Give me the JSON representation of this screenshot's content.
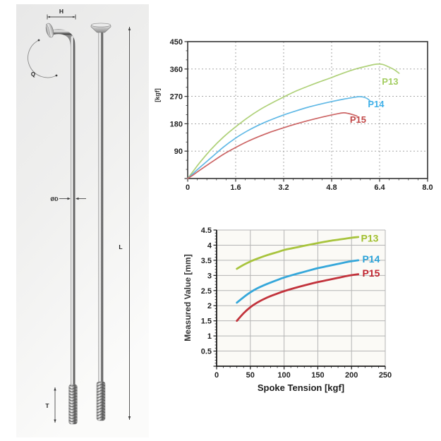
{
  "diagram": {
    "labels": {
      "head_width": "H",
      "bend_angle": "Q",
      "diameter": "ØD",
      "length": "L",
      "thread_length": "T"
    }
  },
  "chart_data": [
    {
      "type": "line",
      "title": "",
      "xlabel": "",
      "ylabel": "[kgf]",
      "xlim": [
        0,
        8
      ],
      "ylim": [
        0,
        450
      ],
      "xtick_vals": [
        0,
        1.6,
        3.2,
        4.8,
        6.4,
        8.0
      ],
      "xtick_labels": [
        "0",
        "1.6",
        "3.2",
        "4.8",
        "6.4",
        "8.0"
      ],
      "ytick_vals": [
        0,
        90,
        180,
        270,
        360,
        450
      ],
      "ytick_labels": [
        "",
        "90",
        "180",
        "270",
        "360",
        "450"
      ],
      "minor_x": 0.32,
      "minor_y": 30,
      "grid": "dashed",
      "frame": "box",
      "legend": "inline-labels",
      "series": [
        {
          "name": "P13",
          "color": "#afd179",
          "label_color": "#a3cd60",
          "label_x": 6.75,
          "label_y": 318,
          "points": [
            [
              0,
              0
            ],
            [
              0.2,
              26
            ],
            [
              0.4,
              52
            ],
            [
              0.8,
              98
            ],
            [
              1.2,
              137
            ],
            [
              1.6,
              170
            ],
            [
              2.0,
              200
            ],
            [
              2.4,
              226
            ],
            [
              2.8,
              248
            ],
            [
              3.2,
              268
            ],
            [
              3.6,
              287
            ],
            [
              4.0,
              303
            ],
            [
              4.4,
              318
            ],
            [
              4.8,
              332
            ],
            [
              5.2,
              347
            ],
            [
              5.6,
              360
            ],
            [
              6.0,
              370
            ],
            [
              6.3,
              376
            ],
            [
              6.5,
              375
            ],
            [
              6.7,
              367
            ],
            [
              6.9,
              357
            ],
            [
              7.05,
              346
            ]
          ]
        },
        {
          "name": "P14",
          "color": "#61b9e6",
          "label_color": "#3fb0e8",
          "label_x": 6.28,
          "label_y": 243,
          "points": [
            [
              0,
              0
            ],
            [
              0.2,
              18
            ],
            [
              0.4,
              36
            ],
            [
              0.8,
              70
            ],
            [
              1.2,
              104
            ],
            [
              1.6,
              133
            ],
            [
              2.0,
              157
            ],
            [
              2.4,
              177
            ],
            [
              2.8,
              194
            ],
            [
              3.2,
              209
            ],
            [
              3.6,
              222
            ],
            [
              4.0,
              234
            ],
            [
              4.4,
              244
            ],
            [
              4.8,
              253
            ],
            [
              5.2,
              261
            ],
            [
              5.5,
              266
            ],
            [
              5.7,
              269
            ],
            [
              5.85,
              268
            ],
            [
              6.0,
              262
            ],
            [
              6.1,
              253
            ]
          ]
        },
        {
          "name": "P15",
          "color": "#cc6565",
          "label_color": "#c14747",
          "label_x": 5.68,
          "label_y": 192,
          "points": [
            [
              0,
              0
            ],
            [
              0.2,
              13
            ],
            [
              0.4,
              27
            ],
            [
              0.8,
              54
            ],
            [
              1.2,
              80
            ],
            [
              1.6,
              102
            ],
            [
              2.0,
              122
            ],
            [
              2.4,
              139
            ],
            [
              2.8,
              154
            ],
            [
              3.2,
              167
            ],
            [
              3.6,
              179
            ],
            [
              4.0,
              190
            ],
            [
              4.4,
              200
            ],
            [
              4.8,
              209
            ],
            [
              5.0,
              213
            ],
            [
              5.2,
              216
            ],
            [
              5.35,
              214
            ],
            [
              5.5,
              210
            ],
            [
              5.65,
              205
            ]
          ]
        }
      ]
    },
    {
      "type": "line",
      "title": "",
      "xlabel": "Spoke Tension [kgf]",
      "ylabel": "Measured Value [mm]",
      "xlim": [
        0,
        250
      ],
      "ylim": [
        0,
        4.5
      ],
      "xtick_vals": [
        0,
        50,
        100,
        150,
        200,
        250
      ],
      "xtick_labels": [
        "0",
        "50",
        "100",
        "150",
        "200",
        "250"
      ],
      "ytick_vals": [
        0,
        0.5,
        1,
        1.5,
        2,
        2.5,
        3,
        3.5,
        4,
        4.5
      ],
      "ytick_labels": [
        "",
        "0.5",
        "1",
        "1.5",
        "2",
        "2.5",
        "3",
        "3.5",
        "4",
        "4.5"
      ],
      "minor_x": 10,
      "minor_y": 0.1,
      "grid": "solid",
      "frame": "axes",
      "legend": "inline-labels",
      "series": [
        {
          "name": "P13",
          "color": "#a8c43d",
          "label_color": "#a0bf2e",
          "label_x": 227,
          "label_y": 4.21,
          "points": [
            [
              30,
              3.22
            ],
            [
              40,
              3.35
            ],
            [
              50,
              3.46
            ],
            [
              60,
              3.55
            ],
            [
              75,
              3.67
            ],
            [
              90,
              3.77
            ],
            [
              100,
              3.84
            ],
            [
              115,
              3.91
            ],
            [
              130,
              3.98
            ],
            [
              150,
              4.07
            ],
            [
              165,
              4.13
            ],
            [
              180,
              4.18
            ],
            [
              195,
              4.23
            ],
            [
              210,
              4.27
            ]
          ]
        },
        {
          "name": "P14",
          "color": "#35a7da",
          "label_color": "#2ba2d8",
          "label_x": 229,
          "label_y": 3.52,
          "points": [
            [
              30,
              2.1
            ],
            [
              40,
              2.28
            ],
            [
              50,
              2.44
            ],
            [
              60,
              2.57
            ],
            [
              75,
              2.72
            ],
            [
              90,
              2.85
            ],
            [
              100,
              2.93
            ],
            [
              115,
              3.03
            ],
            [
              130,
              3.12
            ],
            [
              150,
              3.24
            ],
            [
              165,
              3.31
            ],
            [
              180,
              3.38
            ],
            [
              195,
              3.45
            ],
            [
              210,
              3.5
            ]
          ]
        },
        {
          "name": "P15",
          "color": "#c2333c",
          "label_color": "#c02530",
          "label_x": 229,
          "label_y": 3.06,
          "points": [
            [
              30,
              1.5
            ],
            [
              40,
              1.75
            ],
            [
              50,
              1.95
            ],
            [
              60,
              2.1
            ],
            [
              75,
              2.27
            ],
            [
              90,
              2.4
            ],
            [
              100,
              2.48
            ],
            [
              115,
              2.58
            ],
            [
              130,
              2.67
            ],
            [
              150,
              2.78
            ],
            [
              165,
              2.85
            ],
            [
              180,
              2.92
            ],
            [
              195,
              2.99
            ],
            [
              210,
              3.04
            ]
          ]
        }
      ]
    }
  ]
}
